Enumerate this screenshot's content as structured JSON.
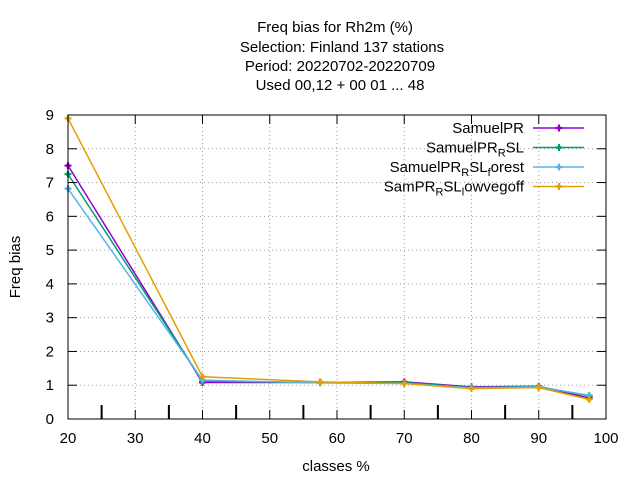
{
  "title_lines": [
    "Freq bias  for Rh2m (%)",
    "Selection: Finland     137 stations",
    "Period: 20220702-20220709",
    "Used  00,12  + 00 01 ... 48"
  ],
  "chart_data": {
    "type": "line",
    "xlabel": "classes %",
    "ylabel": "Freq bias",
    "xlim": [
      20,
      100
    ],
    "ylim": [
      0,
      9
    ],
    "xticks": [
      "20",
      "30",
      "40",
      "50",
      "60",
      "70",
      "80",
      "90",
      "100"
    ],
    "yticks": [
      "0",
      "1",
      "2",
      "3",
      "4",
      "5",
      "6",
      "7",
      "8",
      "9"
    ],
    "grid": true,
    "legend_position": "top-right",
    "x": [
      20,
      40,
      57.5,
      70,
      80,
      90,
      97.5
    ],
    "series": [
      {
        "name": "SamuelPR",
        "label_parts": [
          {
            "t": "SamuelPR"
          }
        ],
        "color": "#9400d3",
        "marker": "plus",
        "values": [
          7.5,
          1.08,
          1.08,
          1.1,
          0.95,
          0.97,
          0.62
        ]
      },
      {
        "name": "SamuelPR_R SL",
        "label_parts": [
          {
            "t": "SamuelPR"
          },
          {
            "t": "R",
            "sub": true
          },
          {
            "t": "SL"
          }
        ],
        "color": "#009e73",
        "marker": "plus",
        "values": [
          7.25,
          1.12,
          1.08,
          1.08,
          0.93,
          0.96,
          0.68
        ]
      },
      {
        "name": "SamuelPR_R SL_forest",
        "label_parts": [
          {
            "t": "SamuelPR"
          },
          {
            "t": "R",
            "sub": true
          },
          {
            "t": "SL"
          },
          {
            "t": "f",
            "sub": true
          },
          {
            "t": "orest"
          }
        ],
        "color": "#56b4e9",
        "marker": "plus",
        "values": [
          6.82,
          1.15,
          1.07,
          1.05,
          0.92,
          0.95,
          0.7
        ]
      },
      {
        "name": "SamPR_R SL_lowvegoff",
        "label_parts": [
          {
            "t": "SamPR"
          },
          {
            "t": "R",
            "sub": true
          },
          {
            "t": "SL"
          },
          {
            "t": "l",
            "sub": true
          },
          {
            "t": "owvegoff"
          }
        ],
        "color": "#e69f00",
        "marker": "plus",
        "values": [
          8.9,
          1.25,
          1.1,
          1.05,
          0.9,
          0.93,
          0.58
        ]
      }
    ],
    "colors": [
      "#9400d3",
      "#009e73",
      "#56b4e9",
      "#e69f00"
    ]
  }
}
